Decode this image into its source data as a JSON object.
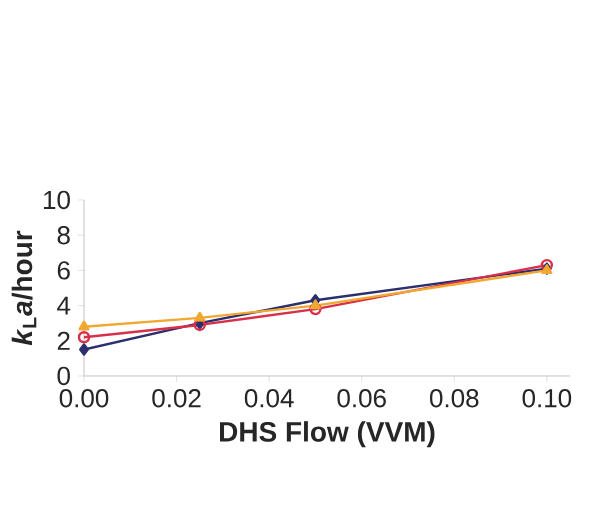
{
  "chart_data": {
    "type": "line",
    "xlabel": "DHS Flow (VVM)",
    "ylabel": "*k*$_{L}$*a*/hour",
    "x": [
      0,
      0.025,
      0.05,
      0.1
    ],
    "series": [
      {
        "color": "#2b2f6e",
        "values": [
          1.5,
          3.0,
          4.3,
          6.1
        ],
        "marker": "diamond"
      },
      {
        "color": "#d9304a",
        "values": [
          2.2,
          2.9,
          3.8,
          6.3
        ],
        "marker": "circle"
      },
      {
        "color": "#f0a830",
        "values": [
          2.8,
          3.3,
          4.0,
          6.0
        ],
        "marker": "triangle"
      }
    ],
    "xlim": [
      0,
      0.105
    ],
    "ylim": [
      0,
      10
    ],
    "xticks": [
      {
        "value": 0,
        "label": "0.00"
      },
      0.02,
      0.04,
      0.06,
      0.08,
      {
        "value": 0.1,
        "label": "0.10"
      }
    ],
    "yticks": [
      0,
      2,
      4,
      6,
      8,
      10
    ],
    "grid": false
  }
}
